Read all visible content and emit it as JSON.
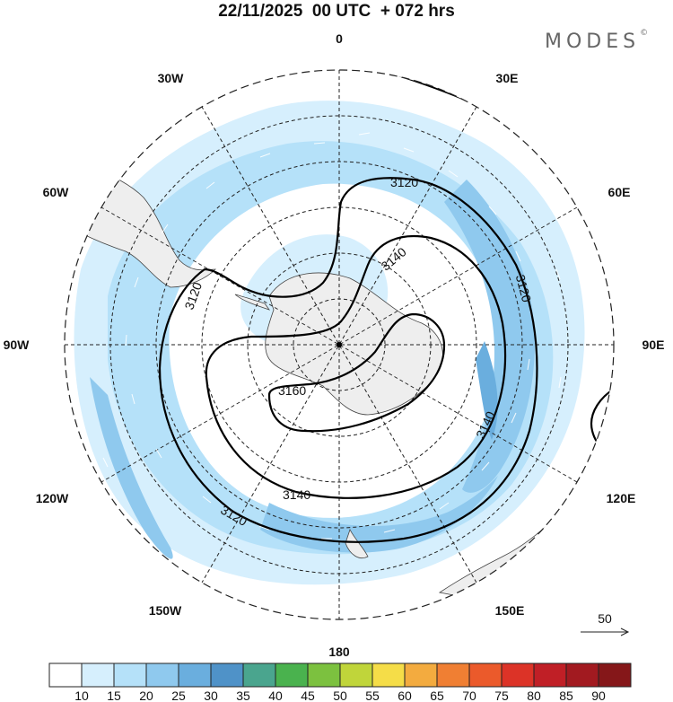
{
  "title": "22/11/2025  00 UTC  + 072 hrs",
  "brand": "MODES",
  "brand_mark": "©",
  "longitude_labels": {
    "lon_0": "0",
    "lon_30e": "30E",
    "lon_60e": "60E",
    "lon_90e": "90E",
    "lon_120e": "120E",
    "lon_150e": "150E",
    "lon_180": "180",
    "lon_150w": "150W",
    "lon_120w": "120W",
    "lon_90w": "90W",
    "lon_60w": "60W",
    "lon_30w": "30W"
  },
  "contour_labels": [
    "3120",
    "3120",
    "3120",
    "3120",
    "3140",
    "3140",
    "3140",
    "3160"
  ],
  "wind_reference": {
    "value": "50"
  },
  "colorbar": {
    "labels": [
      "10",
      "15",
      "20",
      "25",
      "30",
      "35",
      "40",
      "45",
      "50",
      "55",
      "60",
      "65",
      "70",
      "75",
      "80",
      "85",
      "90"
    ],
    "colors": [
      "#ffffff",
      "#d6effd",
      "#b5e1f9",
      "#8fc9ee",
      "#6aaede",
      "#4f92c8",
      "#4aa58e",
      "#4ab24e",
      "#7cc13f",
      "#c0d53a",
      "#f5dd48",
      "#f3ab3f",
      "#f07f33",
      "#eb5a2b",
      "#dc3327",
      "#c01f26",
      "#a21a20",
      "#851719"
    ]
  }
}
